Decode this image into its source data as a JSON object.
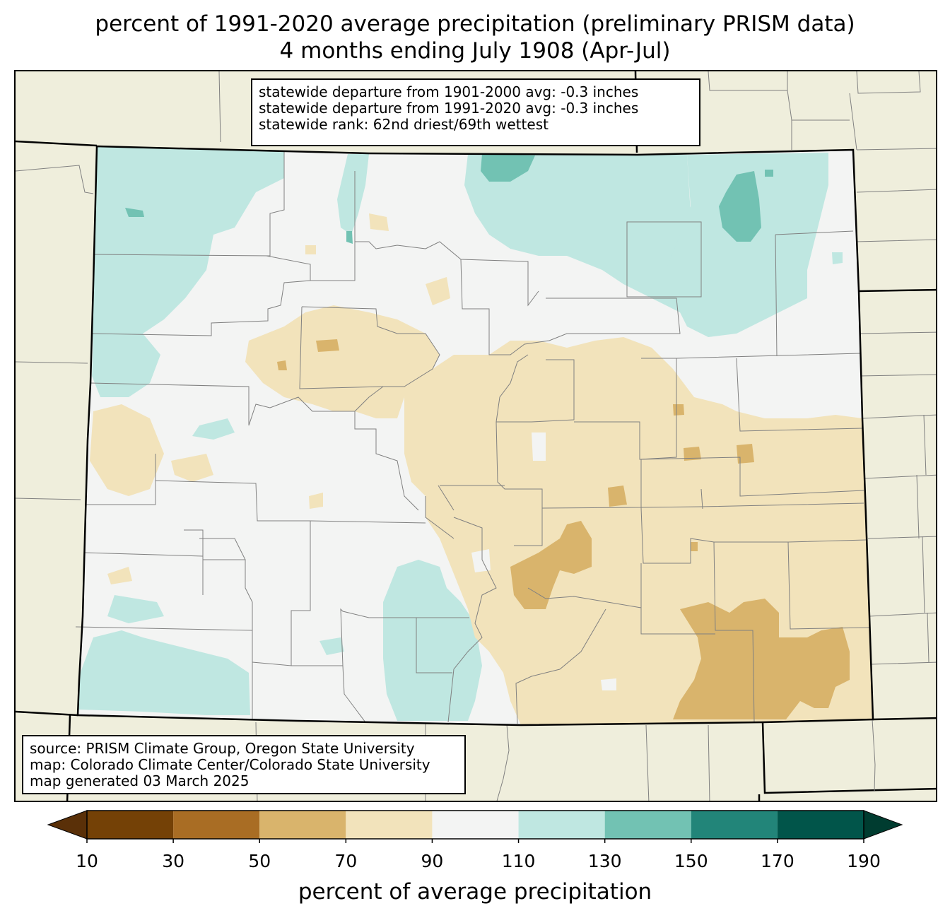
{
  "title": {
    "line1": "percent of 1991-2020 average precipitation (preliminary PRISM data)",
    "line2": "4 months ending July 1908 (Apr-Jul)"
  },
  "stats_box": {
    "lines": [
      "statewide departure from 1901-2000 avg: -0.3 inches",
      "statewide departure from 1991-2020 avg: -0.3 inches",
      "statewide rank: 62nd driest/69th wettest"
    ]
  },
  "source_box": {
    "lines": [
      "source: PRISM Climate Group, Oregon State University",
      "map: Colorado Climate Center/Colorado State University",
      "map generated 03 March 2025"
    ]
  },
  "colorbar": {
    "label": "percent of average precipitation",
    "ticks": [
      "10",
      "30",
      "50",
      "70",
      "90",
      "110",
      "130",
      "150",
      "170",
      "190"
    ],
    "bins": [
      {
        "range": [
          10,
          30
        ],
        "color": "#744106"
      },
      {
        "range": [
          30,
          50
        ],
        "color": "#a96d24"
      },
      {
        "range": [
          50,
          70
        ],
        "color": "#d9b46c"
      },
      {
        "range": [
          70,
          90
        ],
        "color": "#f2e3bb"
      },
      {
        "range": [
          90,
          110
        ],
        "color": "#f3f4f3"
      },
      {
        "range": [
          110,
          130
        ],
        "color": "#bfe7e1"
      },
      {
        "range": [
          130,
          150
        ],
        "color": "#72c2b3"
      },
      {
        "range": [
          150,
          170
        ],
        "color": "#228579"
      },
      {
        "range": [
          170,
          190
        ],
        "color": "#01554a"
      }
    ],
    "under_color": "#5a3008",
    "over_color": "#003c30"
  },
  "map": {
    "background_color": "#efeedc",
    "state_fill": "#f3f4f3",
    "county_line_color": "#808080",
    "state_line_color": "#000000"
  }
}
